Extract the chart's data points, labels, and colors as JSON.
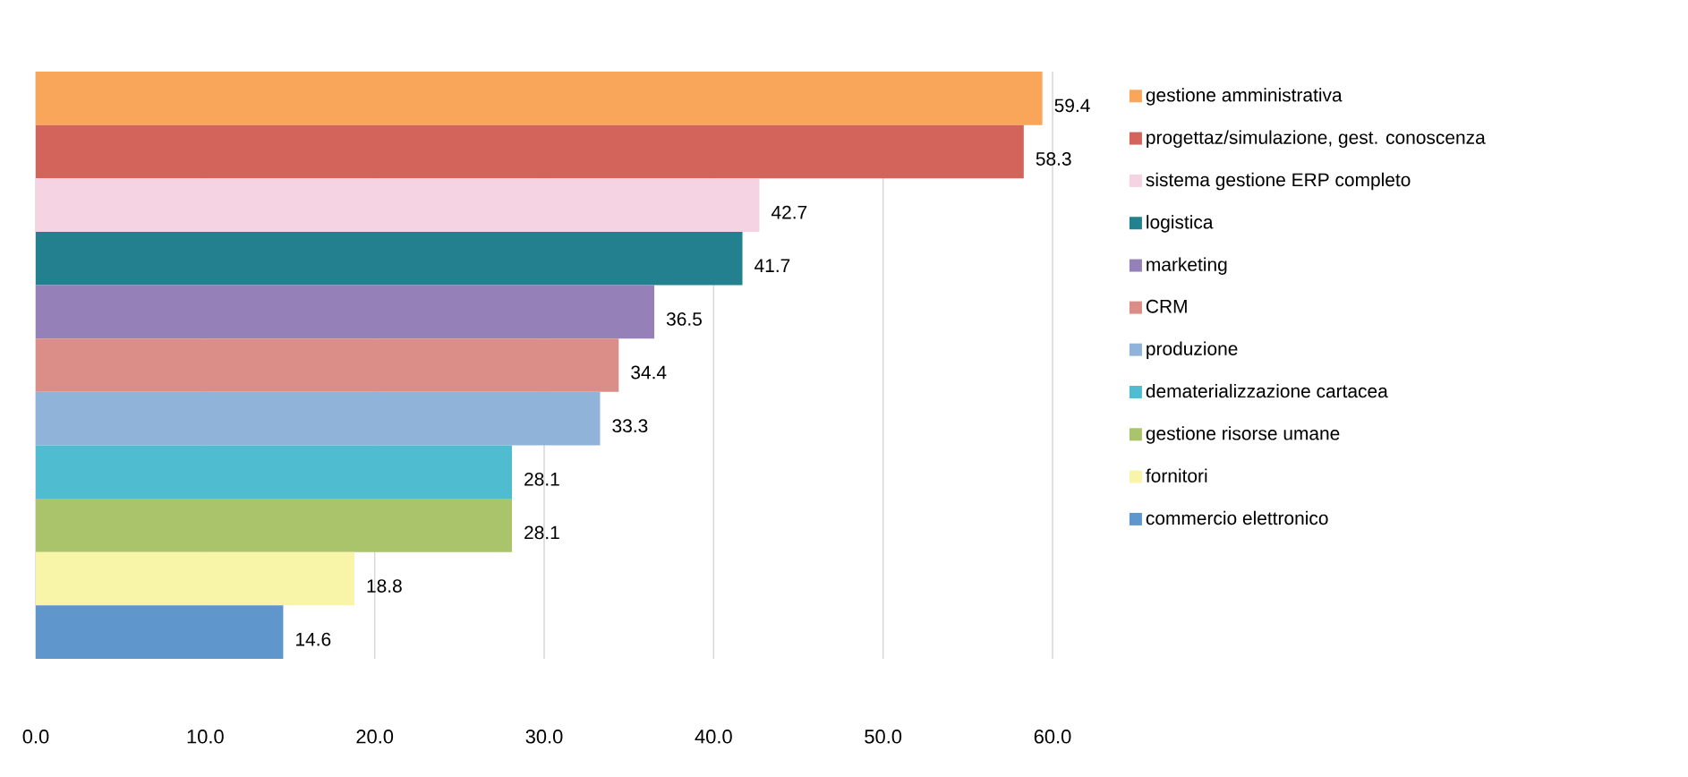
{
  "chart_data": {
    "type": "bar",
    "orientation": "horizontal",
    "categories": [
      null,
      null,
      null,
      null,
      null,
      null,
      null,
      null,
      null,
      null,
      null
    ],
    "series": [
      {
        "name": "gestione amministrativa",
        "color": "#f9a65a",
        "values": [
          59.4,
          null,
          null,
          null,
          null,
          null,
          null,
          null,
          null,
          null,
          null
        ]
      },
      {
        "name": "progettaz/simulazione, gest. conoscenza",
        "color": "#d2645c",
        "values": [
          null,
          58.3,
          null,
          null,
          null,
          null,
          null,
          null,
          null,
          null,
          null
        ]
      },
      {
        "name": "sistema gestione ERP completo",
        "color": "#f6d3e3",
        "values": [
          null,
          null,
          42.7,
          null,
          null,
          null,
          null,
          null,
          null,
          null,
          null
        ]
      },
      {
        "name": "logistica",
        "color": "#23808e",
        "values": [
          null,
          null,
          null,
          41.7,
          null,
          null,
          null,
          null,
          null,
          null,
          null
        ]
      },
      {
        "name": "marketing",
        "color": "#9580b8",
        "values": [
          null,
          null,
          null,
          null,
          36.5,
          null,
          null,
          null,
          null,
          null,
          null
        ]
      },
      {
        "name": "CRM",
        "color": "#da8e87",
        "values": [
          null,
          null,
          null,
          null,
          null,
          34.4,
          null,
          null,
          null,
          null,
          null
        ]
      },
      {
        "name": "produzione",
        "color": "#8fb3d9",
        "values": [
          null,
          null,
          null,
          null,
          null,
          null,
          33.3,
          null,
          null,
          null,
          null
        ]
      },
      {
        "name": "dematerializzazione cartacea",
        "color": "#4fbcd0",
        "values": [
          null,
          null,
          null,
          null,
          null,
          null,
          null,
          28.1,
          null,
          null,
          null
        ]
      },
      {
        "name": "gestione risorse umane",
        "color": "#a9c46a",
        "values": [
          null,
          null,
          null,
          null,
          null,
          null,
          null,
          null,
          28.1,
          null,
          null
        ]
      },
      {
        "name": "fornitori",
        "color": "#f8f5a8",
        "values": [
          null,
          null,
          null,
          null,
          null,
          null,
          null,
          null,
          null,
          18.8,
          null
        ]
      },
      {
        "name": "commercio elettronico",
        "color": "#5f97cc",
        "values": [
          null,
          null,
          null,
          null,
          null,
          null,
          null,
          null,
          null,
          null,
          14.6
        ]
      }
    ],
    "xlim": [
      0,
      60
    ],
    "xticks": [
      {
        "value": 0,
        "label": "0.0"
      },
      {
        "value": 10,
        "label": "10.0"
      },
      {
        "value": 20,
        "label": "20.0"
      },
      {
        "value": 30,
        "label": "30.0"
      },
      {
        "value": 40,
        "label": "40.0"
      },
      {
        "value": 50,
        "label": "50.0"
      },
      {
        "value": 60,
        "label": "60.0"
      }
    ],
    "grid": "x",
    "legend": "right",
    "data_labels": true,
    "tick_labels": "x"
  }
}
